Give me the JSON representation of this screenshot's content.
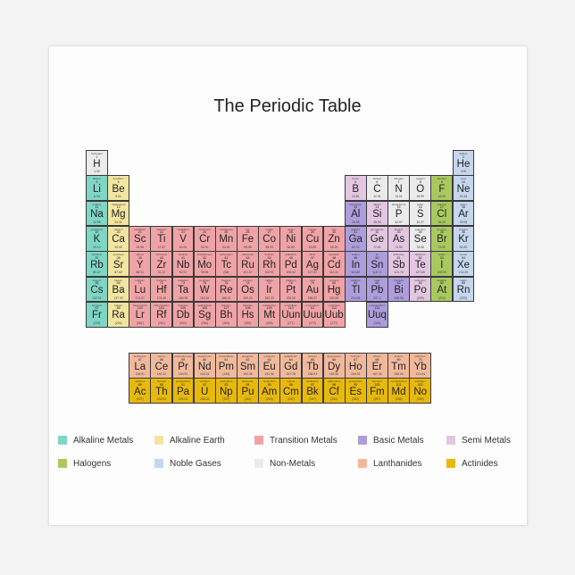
{
  "title": "The Periodic Table",
  "categories": {
    "am": {
      "label": "Alkaline Metals",
      "color": "#7fd6c6"
    },
    "ae": {
      "label": "Alkaline Earth",
      "color": "#f3e5a0"
    },
    "tm": {
      "label": "Transition Metals",
      "color": "#f0a3a6"
    },
    "bm": {
      "label": "Basic Metals",
      "color": "#ad9ddb"
    },
    "sm": {
      "label": "Semi Metals",
      "color": "#e3c6e0"
    },
    "hal": {
      "label": "Halogens",
      "color": "#a9c95f"
    },
    "ng": {
      "label": "Noble Gases",
      "color": "#c6d6ee"
    },
    "nm": {
      "label": "Non-Metals",
      "color": "#ebebeb"
    },
    "lan": {
      "label": "Lanthanides",
      "color": "#f1b99c"
    },
    "act": {
      "label": "Actinides",
      "color": "#e8b90a"
    }
  },
  "legend_order": [
    [
      "am",
      "ae",
      "tm",
      "bm",
      "sm"
    ],
    [
      "hal",
      "ng",
      "nm",
      "lan",
      "act"
    ]
  ],
  "elements": [
    [
      1,
      "H",
      "hydrogen",
      "1.00",
      "nm"
    ],
    [
      2,
      "He",
      "helium",
      "4.00",
      "ng"
    ],
    [
      3,
      "Li",
      "lithium",
      "6.94",
      "am"
    ],
    [
      4,
      "Be",
      "beryllium",
      "9.01",
      "ae"
    ],
    [
      5,
      "B",
      "boron",
      "10.81",
      "sm"
    ],
    [
      6,
      "C",
      "carbon",
      "12.01",
      "nm"
    ],
    [
      7,
      "N",
      "nitrogen",
      "14.01",
      "nm"
    ],
    [
      8,
      "O",
      "oxygen",
      "15.99",
      "nm"
    ],
    [
      9,
      "F",
      "fluorine",
      "18.99",
      "hal"
    ],
    [
      10,
      "Ne",
      "neon",
      "20.18",
      "ng"
    ],
    [
      11,
      "Na",
      "sodium",
      "22.99",
      "am"
    ],
    [
      12,
      "Mg",
      "magnesium",
      "24.31",
      "ae"
    ],
    [
      13,
      "Al",
      "aluminium",
      "26.98",
      "bm"
    ],
    [
      14,
      "Si",
      "silicon",
      "28.09",
      "sm"
    ],
    [
      15,
      "P",
      "phosphorus",
      "30.97",
      "nm"
    ],
    [
      16,
      "S",
      "sulfur",
      "32.07",
      "nm"
    ],
    [
      17,
      "Cl",
      "chlorine",
      "35.45",
      "hal"
    ],
    [
      18,
      "Ar",
      "argon",
      "39.95",
      "ng"
    ],
    [
      19,
      "K",
      "potassium",
      "39.10",
      "am"
    ],
    [
      20,
      "Ca",
      "calcium",
      "40.08",
      "ae"
    ],
    [
      21,
      "Sc",
      "scandium",
      "44.96",
      "tm"
    ],
    [
      22,
      "Ti",
      "titanium",
      "47.87",
      "tm"
    ],
    [
      23,
      "V",
      "vanadium",
      "50.94",
      "tm"
    ],
    [
      24,
      "Cr",
      "chromium",
      "52.00",
      "tm"
    ],
    [
      25,
      "Mn",
      "manganese",
      "54.94",
      "tm"
    ],
    [
      26,
      "Fe",
      "iron",
      "55.85",
      "tm"
    ],
    [
      27,
      "Co",
      "cobalt",
      "58.93",
      "tm"
    ],
    [
      28,
      "Ni",
      "nickel",
      "58.69",
      "tm"
    ],
    [
      29,
      "Cu",
      "copper",
      "63.55",
      "tm"
    ],
    [
      30,
      "Zn",
      "zinc",
      "65.39",
      "tm"
    ],
    [
      31,
      "Ga",
      "gallium",
      "69.72",
      "bm"
    ],
    [
      32,
      "Ge",
      "germanium",
      "72.61",
      "sm"
    ],
    [
      33,
      "As",
      "arsenic",
      "74.92",
      "sm"
    ],
    [
      34,
      "Se",
      "selenium",
      "78.96",
      "nm"
    ],
    [
      35,
      "Br",
      "bromine",
      "79.90",
      "hal"
    ],
    [
      36,
      "Kr",
      "krypton",
      "83.80",
      "ng"
    ],
    [
      37,
      "Rb",
      "rubidium",
      "85.47",
      "am"
    ],
    [
      38,
      "Sr",
      "strontium",
      "87.62",
      "ae"
    ],
    [
      39,
      "Y",
      "yttrium",
      "88.91",
      "tm"
    ],
    [
      40,
      "Zr",
      "zirconium",
      "91.22",
      "tm"
    ],
    [
      41,
      "Nb",
      "niobium",
      "92.91",
      "tm"
    ],
    [
      42,
      "Mo",
      "molybdenum",
      "95.94",
      "tm"
    ],
    [
      43,
      "Tc",
      "technetium",
      "(98)",
      "tm"
    ],
    [
      44,
      "Ru",
      "ruthenium",
      "101.07",
      "tm"
    ],
    [
      45,
      "Rh",
      "rhodium",
      "102.91",
      "tm"
    ],
    [
      46,
      "Pd",
      "palladium",
      "106.42",
      "tm"
    ],
    [
      47,
      "Ag",
      "silver",
      "107.87",
      "tm"
    ],
    [
      48,
      "Cd",
      "cadmium",
      "112.41",
      "tm"
    ],
    [
      49,
      "In",
      "indium",
      "114.82",
      "bm"
    ],
    [
      50,
      "Sn",
      "tin",
      "118.71",
      "bm"
    ],
    [
      51,
      "Sb",
      "antimony",
      "121.76",
      "sm"
    ],
    [
      52,
      "Te",
      "tellurium",
      "127.60",
      "sm"
    ],
    [
      53,
      "I",
      "iodine",
      "126.90",
      "hal"
    ],
    [
      54,
      "Xe",
      "xenon",
      "131.29",
      "ng"
    ],
    [
      55,
      "Cs",
      "cesium",
      "132.91",
      "am"
    ],
    [
      56,
      "Ba",
      "barium",
      "137.33",
      "ae"
    ],
    [
      57,
      "La",
      "lanthanum",
      "138.91",
      "lan"
    ],
    [
      58,
      "Ce",
      "cerium",
      "140.12",
      "lan"
    ],
    [
      59,
      "Pr",
      "praseodymium",
      "140.91",
      "lan"
    ],
    [
      60,
      "Nd",
      "neodymium",
      "144.24",
      "lan"
    ],
    [
      61,
      "Pm",
      "promethium",
      "(145)",
      "lan"
    ],
    [
      62,
      "Sm",
      "samarium",
      "150.36",
      "lan"
    ],
    [
      63,
      "Eu",
      "europium",
      "151.96",
      "lan"
    ],
    [
      64,
      "Gd",
      "gadolinium",
      "157.25",
      "lan"
    ],
    [
      65,
      "Tb",
      "terbium",
      "158.93",
      "lan"
    ],
    [
      66,
      "Dy",
      "dysprosium",
      "162.50",
      "lan"
    ],
    [
      67,
      "Ho",
      "holmium",
      "164.93",
      "lan"
    ],
    [
      68,
      "Er",
      "erbium",
      "167.26",
      "lan"
    ],
    [
      69,
      "Tm",
      "thulium",
      "168.93",
      "lan"
    ],
    [
      70,
      "Yb",
      "ytterbium",
      "173.04",
      "lan"
    ],
    [
      71,
      "Lu",
      "lutetium",
      "174.97",
      "tm"
    ],
    [
      72,
      "Hf",
      "hafnium",
      "178.49",
      "tm"
    ],
    [
      73,
      "Ta",
      "tantalum",
      "180.95",
      "tm"
    ],
    [
      74,
      "W",
      "tungsten",
      "183.84",
      "tm"
    ],
    [
      75,
      "Re",
      "rhenium",
      "186.21",
      "tm"
    ],
    [
      76,
      "Os",
      "osmium",
      "190.23",
      "tm"
    ],
    [
      77,
      "Ir",
      "iridium",
      "192.22",
      "tm"
    ],
    [
      78,
      "Pt",
      "platinum",
      "195.08",
      "tm"
    ],
    [
      79,
      "Au",
      "gold",
      "196.97",
      "tm"
    ],
    [
      80,
      "Hg",
      "mercury",
      "200.59",
      "tm"
    ],
    [
      81,
      "Tl",
      "thallium",
      "204.38",
      "bm"
    ],
    [
      82,
      "Pb",
      "lead",
      "207.2",
      "bm"
    ],
    [
      83,
      "Bi",
      "bismuth",
      "208.98",
      "bm"
    ],
    [
      84,
      "Po",
      "polonium",
      "(209)",
      "sm"
    ],
    [
      85,
      "At",
      "astatine",
      "(210)",
      "hal"
    ],
    [
      86,
      "Rn",
      "radon",
      "(222)",
      "ng"
    ],
    [
      87,
      "Fr",
      "francium",
      "(223)",
      "am"
    ],
    [
      88,
      "Ra",
      "radium",
      "(226)",
      "ae"
    ],
    [
      89,
      "Ac",
      "actinium",
      "(227)",
      "act"
    ],
    [
      90,
      "Th",
      "thorium",
      "232.04",
      "act"
    ],
    [
      91,
      "Pa",
      "protactinium",
      "231.04",
      "act"
    ],
    [
      92,
      "U",
      "uranium",
      "238.03",
      "act"
    ],
    [
      93,
      "Np",
      "neptunium",
      "(237)",
      "act"
    ],
    [
      94,
      "Pu",
      "plutonium",
      "(244)",
      "act"
    ],
    [
      95,
      "Am",
      "americium",
      "(243)",
      "act"
    ],
    [
      96,
      "Cm",
      "curium",
      "(247)",
      "act"
    ],
    [
      97,
      "Bk",
      "berkelium",
      "(247)",
      "act"
    ],
    [
      98,
      "Cf",
      "californium",
      "(251)",
      "act"
    ],
    [
      99,
      "Es",
      "einsteinium",
      "(252)",
      "act"
    ],
    [
      100,
      "Fm",
      "fermium",
      "(257)",
      "act"
    ],
    [
      101,
      "Md",
      "mendelevium",
      "(258)",
      "act"
    ],
    [
      102,
      "No",
      "nobelium",
      "(259)",
      "act"
    ],
    [
      103,
      "Lr",
      "lawrencium",
      "(262)",
      "tm"
    ],
    [
      104,
      "Rf",
      "rutherfordium",
      "(261)",
      "tm"
    ],
    [
      105,
      "Db",
      "dubnium",
      "(262)",
      "tm"
    ],
    [
      106,
      "Sg",
      "seaborgium",
      "(266)",
      "tm"
    ],
    [
      107,
      "Bh",
      "bohrium",
      "(264)",
      "tm"
    ],
    [
      108,
      "Hs",
      "hassium",
      "(269)",
      "tm"
    ],
    [
      109,
      "Mt",
      "meitnerium",
      "(268)",
      "tm"
    ],
    [
      110,
      "Uun",
      "ununnilium",
      "(271)",
      "tm"
    ],
    [
      111,
      "Uuu",
      "unununium",
      "(272)",
      "tm"
    ],
    [
      112,
      "Uub",
      "ununbium",
      "(277)",
      "tm"
    ],
    [
      114,
      "Uuq",
      "ununquadium",
      "(289)",
      "bm"
    ]
  ]
}
